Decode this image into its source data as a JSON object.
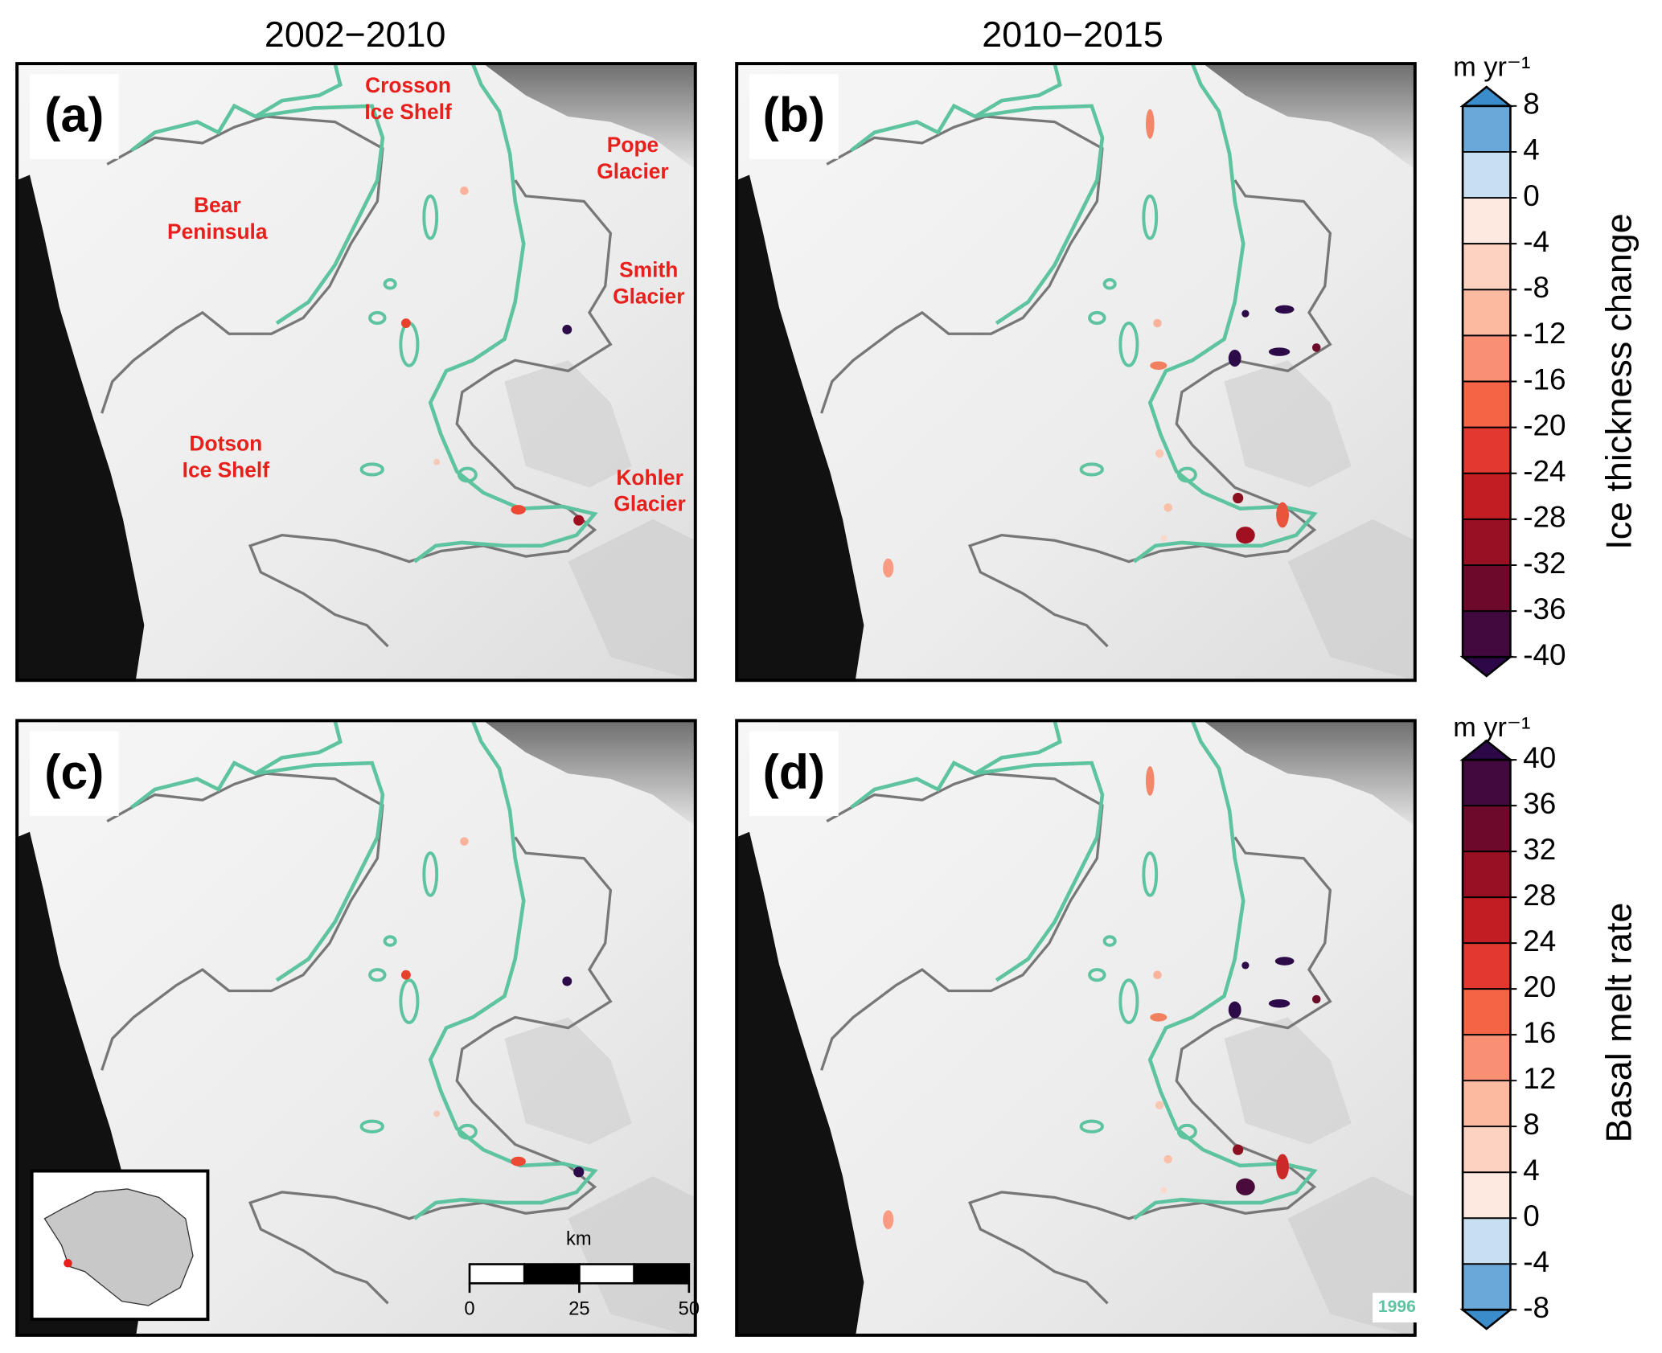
{
  "titles": {
    "left": "2002−2010",
    "right": "2010−2015"
  },
  "panels": [
    {
      "label": "(a)"
    },
    {
      "label": "(b)"
    },
    {
      "label": "(c)"
    },
    {
      "label": "(d)"
    }
  ],
  "place_labels": [
    {
      "lines": [
        "Crosson",
        "Ice Shelf"
      ]
    },
    {
      "lines": [
        "Pope",
        "Glacier"
      ]
    },
    {
      "lines": [
        "Bear",
        "Peninsula"
      ]
    },
    {
      "lines": [
        "Smith",
        "Glacier"
      ]
    },
    {
      "lines": [
        "Dotson",
        "Ice Shelf"
      ]
    },
    {
      "lines": [
        "Kohler",
        "Glacier"
      ]
    }
  ],
  "colorbars": [
    {
      "unit": "m yr⁻¹",
      "label": "Ice thickness change",
      "lim": [
        -40,
        8
      ],
      "ticks": [
        8,
        4,
        0,
        -4,
        -8,
        -12,
        -16,
        -20,
        -24,
        -28,
        -32,
        -36,
        -40
      ]
    },
    {
      "unit": "m yr⁻¹",
      "label": "Basal melt rate",
      "lim": [
        -8,
        40
      ],
      "ticks": [
        40,
        36,
        32,
        28,
        24,
        20,
        16,
        12,
        8,
        4,
        0,
        -4,
        -8
      ]
    }
  ],
  "scale_bar": {
    "unit": "km",
    "ticks": [
      0,
      25,
      50
    ]
  },
  "year_label": "1996"
}
